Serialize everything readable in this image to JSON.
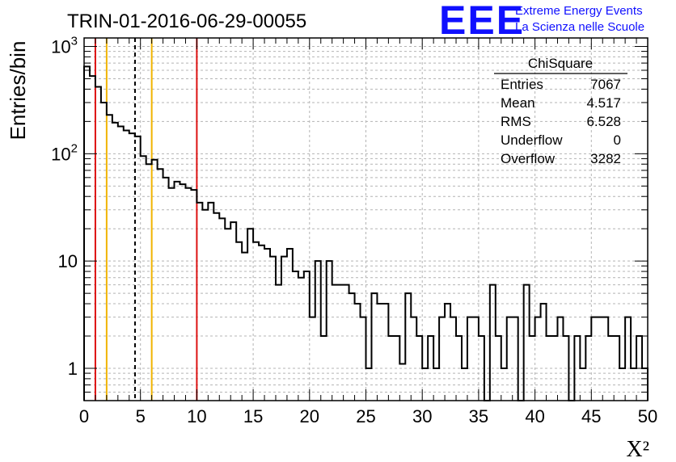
{
  "chart_data": {
    "type": "histogram",
    "title": "TRIN-01-2016-06-29-00055",
    "xlabel": "X²",
    "ylabel": "Entries/bin",
    "xlim": [
      0,
      50
    ],
    "ylim": [
      0.5,
      1200
    ],
    "yscale": "log",
    "grid": true,
    "bin_width": 0.5,
    "x_ticks": [
      "0",
      "5",
      "10",
      "15",
      "20",
      "25",
      "30",
      "35",
      "40",
      "45",
      "50"
    ],
    "y_ticks": [
      {
        "value": 1,
        "base": "1",
        "exp": ""
      },
      {
        "value": 10,
        "base": "10",
        "exp": ""
      },
      {
        "value": 100,
        "base": "10",
        "exp": "2"
      },
      {
        "value": 1000,
        "base": "10",
        "exp": "3"
      }
    ],
    "values": [
      650,
      530,
      420,
      300,
      230,
      195,
      180,
      165,
      155,
      145,
      95,
      80,
      88,
      72,
      60,
      48,
      55,
      52,
      48,
      46,
      35,
      30,
      35,
      28,
      25,
      20,
      23,
      15,
      12,
      20,
      15,
      14,
      13,
      11,
      6,
      11,
      13,
      8,
      7,
      8,
      3,
      10,
      2,
      10,
      6,
      6,
      6,
      5,
      4,
      3,
      1,
      5,
      4,
      4,
      2,
      2,
      1.1,
      5,
      3,
      2,
      1,
      2,
      1,
      3,
      4,
      3,
      2,
      1,
      3,
      3,
      2,
      0,
      6,
      2,
      1,
      3,
      3,
      0,
      6,
      2,
      3,
      4,
      2,
      2,
      3,
      2,
      0,
      2,
      1,
      2,
      3,
      3,
      3,
      2,
      2,
      1,
      3,
      1,
      2,
      1
    ],
    "vertical_lines": [
      {
        "x": 1,
        "color": "#dd1111",
        "style": "solid"
      },
      {
        "x": 2,
        "color": "#f0b400",
        "style": "solid"
      },
      {
        "x": 4.517,
        "color": "#000000",
        "style": "dashed"
      },
      {
        "x": 6,
        "color": "#f0b400",
        "style": "solid"
      },
      {
        "x": 10,
        "color": "#dd1111",
        "style": "solid"
      }
    ],
    "stats": {
      "name": "ChiSquare",
      "rows": [
        {
          "label": "Entries",
          "value": "7067"
        },
        {
          "label": "Mean",
          "value": "4.517"
        },
        {
          "label": "RMS",
          "value": "6.528"
        },
        {
          "label": "Underflow",
          "value": "0"
        },
        {
          "label": "Overflow",
          "value": "3282"
        }
      ]
    }
  },
  "logo": {
    "mark": "EEE",
    "line1": "Extreme Energy Events",
    "line2": "La Scienza nelle Scuole",
    "color": "#1010ff"
  }
}
